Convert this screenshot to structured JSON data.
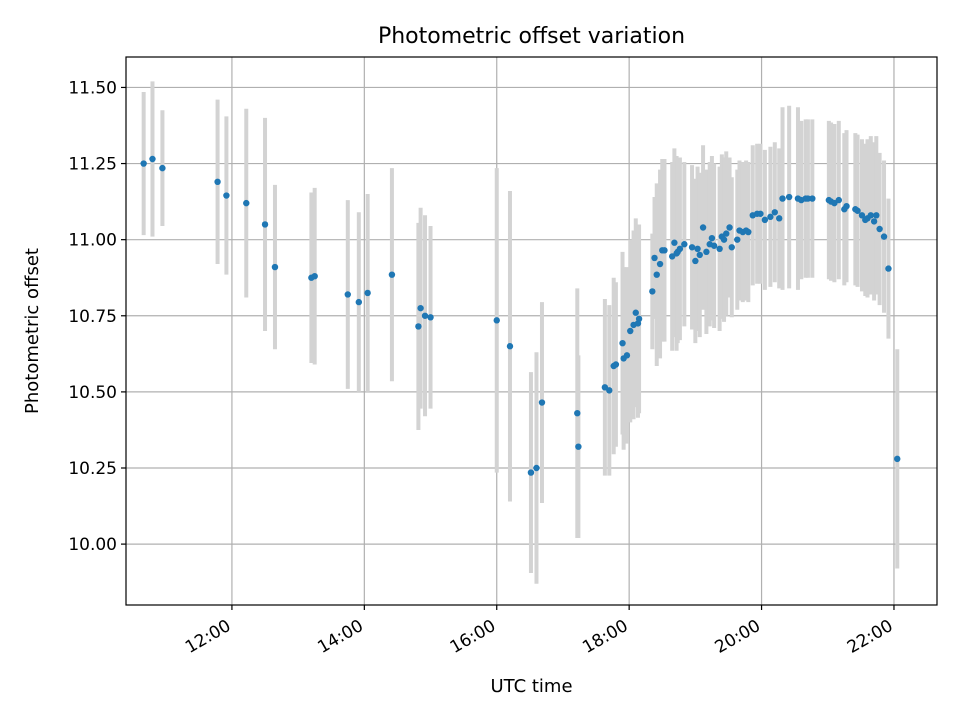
{
  "chart_data": {
    "type": "scatter",
    "title": "Photometric offset variation",
    "xlabel": "UTC time",
    "ylabel": "Photometric offset",
    "xlim": [
      "10:24",
      "22:39"
    ],
    "ylim": [
      9.8,
      11.6
    ],
    "grid": true,
    "x_ticks": [
      "12:00",
      "14:00",
      "16:00",
      "18:00",
      "20:00",
      "22:00"
    ],
    "y_ticks": [
      "10.00",
      "10.25",
      "10.50",
      "10.75",
      "11.00",
      "11.25",
      "11.50"
    ],
    "colors": {
      "marker": "#1f77b4",
      "errorbar": "#d3d3d3",
      "grid": "#b0b0b0"
    },
    "series": [
      {
        "x": [
          "10:40",
          "10:48",
          "10:57",
          "11:47",
          "11:55",
          "12:13",
          "12:30",
          "12:39",
          "13:12",
          "13:15",
          "13:45",
          "13:55",
          "14:03",
          "14:25",
          "14:49",
          "14:51",
          "14:55",
          "15:00",
          "16:00",
          "16:12",
          "16:31",
          "16:36",
          "16:41",
          "17:13",
          "17:14",
          "17:38",
          "17:42",
          "17:46",
          "17:48",
          "17:54",
          "17:55",
          "17:58",
          "18:01",
          "18:04",
          "18:06",
          "18:08",
          "18:09",
          "18:21",
          "18:23",
          "18:25",
          "18:28",
          "18:30",
          "18:32",
          "18:39",
          "18:41",
          "18:43",
          "18:44",
          "18:46",
          "18:50",
          "18:57",
          "19:00",
          "19:02",
          "19:04",
          "19:07",
          "19:10",
          "19:13",
          "19:15",
          "19:17",
          "19:22",
          "19:24",
          "19:26",
          "19:28",
          "19:31",
          "19:33",
          "19:38",
          "19:40",
          "19:43",
          "19:46",
          "19:48",
          "19:52",
          "19:56",
          "19:59",
          "20:03",
          "20:08",
          "20:12",
          "20:16",
          "20:19",
          "20:25",
          "20:33",
          "20:36",
          "20:40",
          "20:42",
          "20:46",
          "21:01",
          "21:03",
          "21:06",
          "21:10",
          "21:15",
          "21:17",
          "21:25",
          "21:27",
          "21:31",
          "21:34",
          "21:36",
          "21:39",
          "21:42",
          "21:44",
          "21:47",
          "21:51",
          "21:55",
          "22:03"
        ],
        "y": [
          11.25,
          11.265,
          11.235,
          11.19,
          11.145,
          11.12,
          11.05,
          10.91,
          10.875,
          10.88,
          10.82,
          10.795,
          10.825,
          10.885,
          10.715,
          10.775,
          10.75,
          10.745,
          10.735,
          10.65,
          10.235,
          10.25,
          10.465,
          10.43,
          10.32,
          10.515,
          10.505,
          10.585,
          10.59,
          10.66,
          10.61,
          10.62,
          10.7,
          10.72,
          10.76,
          10.725,
          10.74,
          10.83,
          10.94,
          10.885,
          10.92,
          10.965,
          10.965,
          10.945,
          10.99,
          10.955,
          10.96,
          10.97,
          10.985,
          10.975,
          10.93,
          10.97,
          10.95,
          11.04,
          10.96,
          10.985,
          11.005,
          10.98,
          10.97,
          11.01,
          11.0,
          11.02,
          11.04,
          10.975,
          11.0,
          11.03,
          11.025,
          11.03,
          11.025,
          11.08,
          11.085,
          11.085,
          11.065,
          11.075,
          11.09,
          11.07,
          11.135,
          11.14,
          11.135,
          11.13,
          11.135,
          11.135,
          11.135,
          11.13,
          11.125,
          11.12,
          11.13,
          11.1,
          11.11,
          11.1,
          11.095,
          11.08,
          11.065,
          11.07,
          11.08,
          11.06,
          11.08,
          11.035,
          11.01,
          10.905,
          10.28
        ],
        "yerr": [
          0.235,
          0.255,
          0.19,
          0.27,
          0.26,
          0.31,
          0.35,
          0.27,
          0.28,
          0.29,
          0.31,
          0.295,
          0.325,
          0.35,
          0.34,
          0.33,
          0.33,
          0.3,
          0.5,
          0.51,
          0.33,
          0.38,
          0.33,
          0.41,
          0.3,
          0.29,
          0.28,
          0.29,
          0.27,
          0.3,
          0.3,
          0.29,
          0.3,
          0.31,
          0.31,
          0.31,
          0.31,
          0.19,
          0.2,
          0.3,
          0.31,
          0.3,
          0.3,
          0.31,
          0.31,
          0.32,
          0.3,
          0.3,
          0.27,
          0.27,
          0.27,
          0.27,
          0.27,
          0.27,
          0.27,
          0.27,
          0.27,
          0.27,
          0.27,
          0.27,
          0.27,
          0.27,
          0.23,
          0.23,
          0.23,
          0.23,
          0.23,
          0.23,
          0.23,
          0.23,
          0.23,
          0.23,
          0.23,
          0.23,
          0.23,
          0.23,
          0.3,
          0.3,
          0.3,
          0.26,
          0.26,
          0.26,
          0.26,
          0.26,
          0.26,
          0.26,
          0.26,
          0.25,
          0.25,
          0.25,
          0.25,
          0.25,
          0.25,
          0.26,
          0.26,
          0.26,
          0.26,
          0.25,
          0.25,
          0.23,
          0.36
        ]
      }
    ]
  }
}
